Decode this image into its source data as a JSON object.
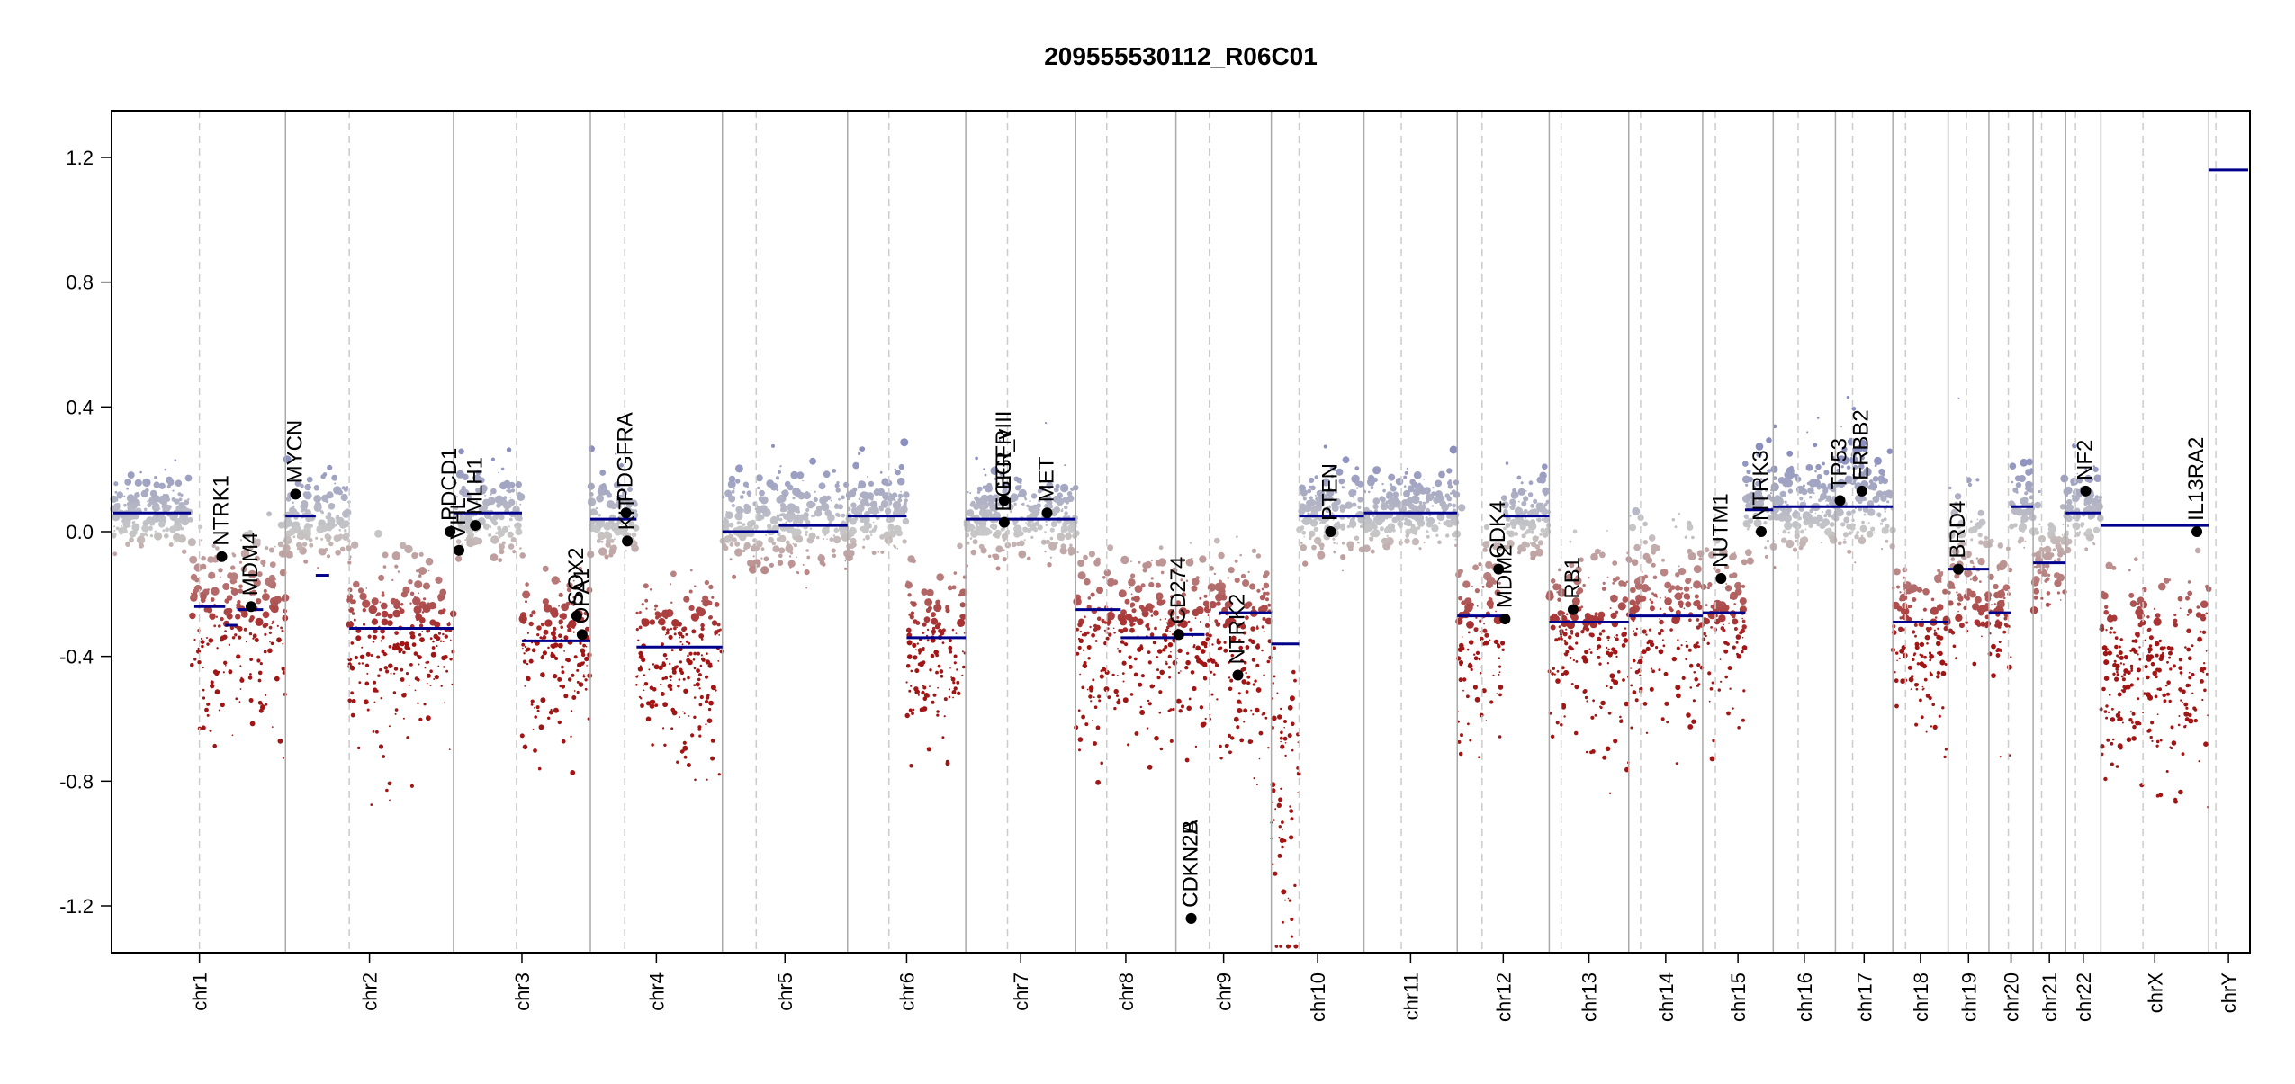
{
  "chart_data": {
    "type": "scatter",
    "title": "209555530112_R06C01",
    "xlabel": "",
    "ylabel": "",
    "ylim": [
      -1.35,
      1.35
    ],
    "yticks": [
      "-1.2",
      "-0.8",
      "-0.4",
      "0.0",
      "0.4",
      "0.8",
      "1.2"
    ],
    "ytick_values": [
      -1.2,
      -0.8,
      -0.4,
      0.0,
      0.4,
      0.8,
      1.2
    ],
    "grid": false,
    "legend": "none",
    "colors": {
      "gain": "#8a8fbf",
      "neutral": "#c8c8c8",
      "loss": "#a11515",
      "segment": "#00008b",
      "gene": "#000000",
      "chrom_boundary": "#aaaaaa",
      "centromere": "#cccccc",
      "axis": "#000000"
    },
    "chromosomes": [
      {
        "name": "chr1",
        "length": 249,
        "centromere": 0.5
      },
      {
        "name": "chr2",
        "length": 243,
        "centromere": 0.38
      },
      {
        "name": "chr3",
        "length": 198,
        "centromere": 0.46
      },
      {
        "name": "chr4",
        "length": 191,
        "centromere": 0.26
      },
      {
        "name": "chr5",
        "length": 181,
        "centromere": 0.27
      },
      {
        "name": "chr6",
        "length": 171,
        "centromere": 0.35
      },
      {
        "name": "chr7",
        "length": 159,
        "centromere": 0.38
      },
      {
        "name": "chr8",
        "length": 145,
        "centromere": 0.31
      },
      {
        "name": "chr9",
        "length": 138,
        "centromere": 0.35
      },
      {
        "name": "chr10",
        "length": 134,
        "centromere": 0.3
      },
      {
        "name": "chr11",
        "length": 135,
        "centromere": 0.4
      },
      {
        "name": "chr12",
        "length": 133,
        "centromere": 0.27
      },
      {
        "name": "chr13",
        "length": 115,
        "centromere": 0.15
      },
      {
        "name": "chr14",
        "length": 107,
        "centromere": 0.16
      },
      {
        "name": "chr15",
        "length": 102,
        "centromere": 0.18
      },
      {
        "name": "chr16",
        "length": 90,
        "centromere": 0.4
      },
      {
        "name": "chr17",
        "length": 83,
        "centromere": 0.3
      },
      {
        "name": "chr18",
        "length": 80,
        "centromere": 0.23
      },
      {
        "name": "chr19",
        "length": 59,
        "centromere": 0.45
      },
      {
        "name": "chr20",
        "length": 64,
        "centromere": 0.44
      },
      {
        "name": "chr21",
        "length": 47,
        "centromere": 0.26
      },
      {
        "name": "chr22",
        "length": 51,
        "centromere": 0.28
      },
      {
        "name": "chrX",
        "length": 156,
        "centromere": 0.39
      },
      {
        "name": "chrY",
        "length": 57,
        "centromere": 0.18
      }
    ],
    "segments": [
      {
        "chr": "chr1",
        "from": 0.0,
        "to": 0.45,
        "value": 0.06
      },
      {
        "chr": "chr1",
        "from": 0.47,
        "to": 0.65,
        "value": -0.24
      },
      {
        "chr": "chr1",
        "from": 0.65,
        "to": 0.72,
        "value": -0.3
      },
      {
        "chr": "chr1",
        "from": 0.72,
        "to": 0.87,
        "value": -0.25
      },
      {
        "chr": "chr2",
        "from": 0.0,
        "to": 0.18,
        "value": 0.05
      },
      {
        "chr": "chr2",
        "from": 0.18,
        "to": 0.26,
        "value": -0.14
      },
      {
        "chr": "chr2",
        "from": 0.38,
        "to": 1.0,
        "value": -0.31
      },
      {
        "chr": "chr3",
        "from": 0.0,
        "to": 0.5,
        "value": 0.06
      },
      {
        "chr": "chr3",
        "from": 0.5,
        "to": 1.0,
        "value": -0.35
      },
      {
        "chr": "chr4",
        "from": 0.0,
        "to": 0.35,
        "value": 0.04
      },
      {
        "chr": "chr4",
        "from": 0.35,
        "to": 1.0,
        "value": -0.37
      },
      {
        "chr": "chr5",
        "from": 0.0,
        "to": 0.45,
        "value": 0.0
      },
      {
        "chr": "chr5",
        "from": 0.45,
        "to": 1.0,
        "value": 0.02
      },
      {
        "chr": "chr6",
        "from": 0.0,
        "to": 0.5,
        "value": 0.05
      },
      {
        "chr": "chr6",
        "from": 0.5,
        "to": 1.0,
        "value": -0.34
      },
      {
        "chr": "chr7",
        "from": 0.0,
        "to": 1.0,
        "value": 0.04
      },
      {
        "chr": "chr8",
        "from": 0.0,
        "to": 0.45,
        "value": -0.25
      },
      {
        "chr": "chr8",
        "from": 0.45,
        "to": 1.0,
        "value": -0.34
      },
      {
        "chr": "chr9",
        "from": 0.0,
        "to": 0.3,
        "value": -0.33
      },
      {
        "chr": "chr9",
        "from": 0.45,
        "to": 1.0,
        "value": -0.26
      },
      {
        "chr": "chr10",
        "from": 0.0,
        "to": 0.3,
        "value": -0.36
      },
      {
        "chr": "chr10",
        "from": 0.3,
        "to": 1.0,
        "value": 0.05
      },
      {
        "chr": "chr11",
        "from": 0.0,
        "to": 1.0,
        "value": 0.06
      },
      {
        "chr": "chr12",
        "from": 0.0,
        "to": 0.5,
        "value": -0.27
      },
      {
        "chr": "chr12",
        "from": 0.5,
        "to": 1.0,
        "value": 0.05
      },
      {
        "chr": "chr13",
        "from": 0.0,
        "to": 1.0,
        "value": -0.29
      },
      {
        "chr": "chr14",
        "from": 0.0,
        "to": 1.0,
        "value": -0.27
      },
      {
        "chr": "chr15",
        "from": 0.0,
        "to": 0.6,
        "value": -0.26
      },
      {
        "chr": "chr15",
        "from": 0.6,
        "to": 1.0,
        "value": 0.07
      },
      {
        "chr": "chr16",
        "from": 0.0,
        "to": 1.0,
        "value": 0.08
      },
      {
        "chr": "chr17",
        "from": 0.0,
        "to": 1.0,
        "value": 0.08
      },
      {
        "chr": "chr18",
        "from": 0.0,
        "to": 1.0,
        "value": -0.29
      },
      {
        "chr": "chr19",
        "from": 0.0,
        "to": 1.0,
        "value": -0.12
      },
      {
        "chr": "chr20",
        "from": 0.0,
        "to": 0.5,
        "value": -0.26
      },
      {
        "chr": "chr20",
        "from": 0.5,
        "to": 1.0,
        "value": 0.08
      },
      {
        "chr": "chr21",
        "from": 0.0,
        "to": 1.0,
        "value": -0.1
      },
      {
        "chr": "chr22",
        "from": 0.0,
        "to": 1.0,
        "value": 0.06
      },
      {
        "chr": "chrX",
        "from": 0.0,
        "to": 1.0,
        "value": 0.02
      },
      {
        "chr": "chrY",
        "from": 0.0,
        "to": 1.0,
        "value": 1.16
      }
    ],
    "point_clouds": [
      {
        "chr": "chr1",
        "from": 0.0,
        "to": 0.45,
        "value": 0.06,
        "spread": 0.12
      },
      {
        "chr": "chr1",
        "from": 0.45,
        "to": 1.0,
        "value": -0.25,
        "spread": 0.28
      },
      {
        "chr": "chr2",
        "from": 0.0,
        "to": 0.38,
        "value": 0.03,
        "spread": 0.14
      },
      {
        "chr": "chr2",
        "from": 0.38,
        "to": 1.0,
        "value": -0.31,
        "spread": 0.28
      },
      {
        "chr": "chr3",
        "from": 0.0,
        "to": 0.5,
        "value": 0.06,
        "spread": 0.14
      },
      {
        "chr": "chr3",
        "from": 0.5,
        "to": 1.0,
        "value": -0.35,
        "spread": 0.26
      },
      {
        "chr": "chr4",
        "from": 0.0,
        "to": 0.35,
        "value": 0.04,
        "spread": 0.14
      },
      {
        "chr": "chr4",
        "from": 0.35,
        "to": 1.0,
        "value": -0.37,
        "spread": 0.26
      },
      {
        "chr": "chr5",
        "from": 0.0,
        "to": 1.0,
        "value": 0.02,
        "spread": 0.16
      },
      {
        "chr": "chr6",
        "from": 0.0,
        "to": 0.5,
        "value": 0.05,
        "spread": 0.14
      },
      {
        "chr": "chr6",
        "from": 0.5,
        "to": 1.0,
        "value": -0.34,
        "spread": 0.26
      },
      {
        "chr": "chr7",
        "from": 0.0,
        "to": 1.0,
        "value": 0.04,
        "spread": 0.14
      },
      {
        "chr": "chr8",
        "from": 0.0,
        "to": 1.0,
        "value": -0.3,
        "spread": 0.28
      },
      {
        "chr": "chr9",
        "from": 0.0,
        "to": 1.0,
        "value": -0.3,
        "spread": 0.3
      },
      {
        "chr": "chr10",
        "from": 0.0,
        "to": 0.3,
        "value": -0.75,
        "spread": 0.5
      },
      {
        "chr": "chr10",
        "from": 0.3,
        "to": 1.0,
        "value": 0.05,
        "spread": 0.14
      },
      {
        "chr": "chr11",
        "from": 0.0,
        "to": 1.0,
        "value": 0.06,
        "spread": 0.12
      },
      {
        "chr": "chr12",
        "from": 0.0,
        "to": 0.5,
        "value": -0.27,
        "spread": 0.28
      },
      {
        "chr": "chr12",
        "from": 0.5,
        "to": 1.0,
        "value": 0.05,
        "spread": 0.14
      },
      {
        "chr": "chr13",
        "from": 0.0,
        "to": 1.0,
        "value": -0.29,
        "spread": 0.28
      },
      {
        "chr": "chr14",
        "from": 0.0,
        "to": 1.0,
        "value": -0.2,
        "spread": 0.3
      },
      {
        "chr": "chr15",
        "from": 0.0,
        "to": 0.6,
        "value": -0.26,
        "spread": 0.26
      },
      {
        "chr": "chr15",
        "from": 0.6,
        "to": 1.0,
        "value": 0.07,
        "spread": 0.14
      },
      {
        "chr": "chr16",
        "from": 0.0,
        "to": 1.0,
        "value": 0.08,
        "spread": 0.16
      },
      {
        "chr": "chr17",
        "from": 0.0,
        "to": 1.0,
        "value": 0.1,
        "spread": 0.18
      },
      {
        "chr": "chr18",
        "from": 0.0,
        "to": 1.0,
        "value": -0.29,
        "spread": 0.26
      },
      {
        "chr": "chr19",
        "from": 0.0,
        "to": 1.0,
        "value": -0.12,
        "spread": 0.3
      },
      {
        "chr": "chr20",
        "from": 0.0,
        "to": 0.5,
        "value": -0.26,
        "spread": 0.26
      },
      {
        "chr": "chr20",
        "from": 0.5,
        "to": 1.0,
        "value": 0.08,
        "spread": 0.14
      },
      {
        "chr": "chr21",
        "from": 0.0,
        "to": 1.0,
        "value": -0.1,
        "spread": 0.16
      },
      {
        "chr": "chr22",
        "from": 0.0,
        "to": 1.0,
        "value": 0.06,
        "spread": 0.14
      },
      {
        "chr": "chrX",
        "from": 0.0,
        "to": 1.0,
        "value": -0.4,
        "spread": 0.3
      }
    ],
    "genes": [
      {
        "name": "NTRK1",
        "chr": "chr1",
        "pos": 0.63,
        "value": -0.08
      },
      {
        "name": "MDM4",
        "chr": "chr1",
        "pos": 0.8,
        "value": -0.24
      },
      {
        "name": "MYCN",
        "chr": "chr2",
        "pos": 0.06,
        "value": 0.12
      },
      {
        "name": "PDCD1",
        "chr": "chr2",
        "pos": 0.98,
        "value": 0.0
      },
      {
        "name": "VHL",
        "chr": "chr3",
        "pos": 0.04,
        "value": -0.06
      },
      {
        "name": "MLH1",
        "chr": "chr3",
        "pos": 0.16,
        "value": 0.02
      },
      {
        "name": "SOX2",
        "chr": "chr3",
        "pos": 0.9,
        "value": -0.27
      },
      {
        "name": "OPA1",
        "chr": "chr3",
        "pos": 0.94,
        "value": -0.33
      },
      {
        "name": "KIT",
        "chr": "chr4",
        "pos": 0.28,
        "value": -0.03
      },
      {
        "name": "PDGFRA",
        "chr": "chr4",
        "pos": 0.27,
        "value": 0.06
      },
      {
        "name": "EGFR",
        "chr": "chr7",
        "pos": 0.35,
        "value": 0.1
      },
      {
        "name": "EGFR_vIII",
        "chr": "chr7",
        "pos": 0.35,
        "value": 0.03
      },
      {
        "name": "MET",
        "chr": "chr7",
        "pos": 0.74,
        "value": 0.06
      },
      {
        "name": "CD274",
        "chr": "chr9",
        "pos": 0.03,
        "value": -0.33
      },
      {
        "name": "CDKN2A",
        "chr": "chr9",
        "pos": 0.16,
        "value": -1.24
      },
      {
        "name": "CDKN2B",
        "chr": "chr9",
        "pos": 0.16,
        "value": -1.24
      },
      {
        "name": "NTRK2",
        "chr": "chr9",
        "pos": 0.65,
        "value": -0.46
      },
      {
        "name": "PTEN",
        "chr": "chr10",
        "pos": 0.64,
        "value": 0.0
      },
      {
        "name": "CDK4",
        "chr": "chr12",
        "pos": 0.45,
        "value": -0.12
      },
      {
        "name": "MDM2",
        "chr": "chr12",
        "pos": 0.52,
        "value": -0.28
      },
      {
        "name": "RB1",
        "chr": "chr13",
        "pos": 0.3,
        "value": -0.25
      },
      {
        "name": "NUTM1",
        "chr": "chr15",
        "pos": 0.26,
        "value": -0.15
      },
      {
        "name": "NTRK3",
        "chr": "chr15",
        "pos": 0.83,
        "value": 0.0
      },
      {
        "name": "TP53",
        "chr": "chr17",
        "pos": 0.08,
        "value": 0.1
      },
      {
        "name": "ERBB2",
        "chr": "chr17",
        "pos": 0.46,
        "value": 0.13
      },
      {
        "name": "BRD4",
        "chr": "chr19",
        "pos": 0.25,
        "value": -0.12
      },
      {
        "name": "NF2",
        "chr": "chr22",
        "pos": 0.57,
        "value": 0.13
      },
      {
        "name": "IL13RA2",
        "chr": "chrX",
        "pos": 0.89,
        "value": 0.0
      }
    ]
  }
}
